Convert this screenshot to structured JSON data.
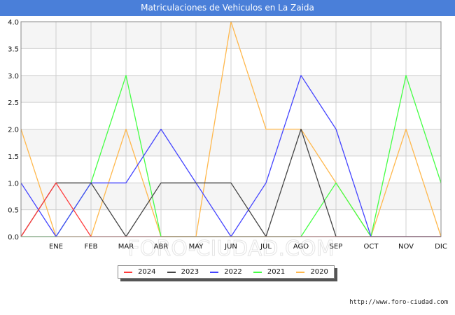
{
  "title": "Matriculaciones de Vehiculos en La Zaida",
  "watermark": "FORO-CIUDAD.COM",
  "source": "http://www.foro-ciudad.com",
  "chart_data": {
    "type": "line",
    "x": [
      "",
      "ENE",
      "FEB",
      "MAR",
      "ABR",
      "MAY",
      "JUN",
      "JUL",
      "AGO",
      "SEP",
      "OCT",
      "NOV",
      "DIC"
    ],
    "ylim": [
      0,
      4
    ],
    "yticks": [
      "0.0",
      "0.5",
      "1.0",
      "1.5",
      "2.0",
      "2.5",
      "3.0",
      "3.5",
      "4.0"
    ],
    "grid": true,
    "legend_position": "bottom",
    "series": [
      {
        "name": "2024",
        "color": "#ff3b3b",
        "values": [
          0,
          1,
          0,
          0,
          0,
          0,
          0,
          0,
          0,
          0,
          0,
          0,
          0
        ]
      },
      {
        "name": "2023",
        "color": "#444444",
        "values": [
          0,
          1,
          1,
          0,
          1,
          1,
          1,
          0,
          2,
          0,
          0,
          0,
          0
        ]
      },
      {
        "name": "2022",
        "color": "#4444ff",
        "values": [
          1,
          0,
          1,
          1,
          2,
          1,
          0,
          1,
          3,
          2,
          0,
          0,
          0
        ]
      },
      {
        "name": "2021",
        "color": "#44ff44",
        "values": [
          0,
          0,
          1,
          3,
          0,
          0,
          0,
          0,
          0,
          1,
          0,
          3,
          1
        ]
      },
      {
        "name": "2020",
        "color": "#ffb84d",
        "values": [
          2,
          0,
          0,
          2,
          0,
          0,
          4,
          2,
          2,
          1,
          0,
          2,
          0
        ]
      }
    ]
  }
}
